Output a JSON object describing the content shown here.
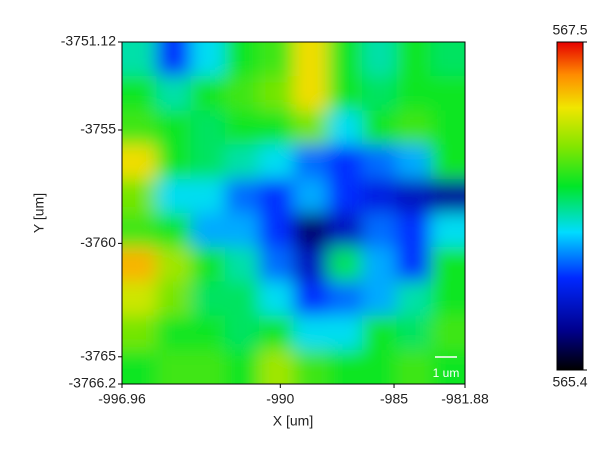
{
  "chart_data": {
    "type": "heatmap",
    "xlabel": "X [um]",
    "ylabel": "Y [um]",
    "xlim": [
      -996.96,
      -981.88
    ],
    "xticks": [
      -996.96,
      -990,
      -985,
      -981.88
    ],
    "ylim": [
      -3766.2,
      -3751.12
    ],
    "yticks": [
      -3751.12,
      -3755,
      -3760,
      -3765,
      -3766.2
    ],
    "z": [
      [
        566.4,
        566.0,
        566.3,
        566.6,
        566.7,
        567.1,
        566.6,
        566.4,
        566.6,
        566.5
      ],
      [
        566.6,
        566.4,
        566.6,
        566.7,
        566.8,
        567.1,
        566.6,
        566.5,
        566.6,
        566.6
      ],
      [
        566.7,
        566.6,
        566.5,
        566.6,
        566.6,
        566.8,
        566.3,
        566.6,
        566.7,
        566.6
      ],
      [
        567.1,
        566.6,
        566.5,
        566.4,
        566.3,
        566.1,
        566.0,
        566.1,
        566.2,
        566.6
      ],
      [
        566.8,
        566.3,
        566.3,
        566.1,
        566.0,
        566.2,
        566.0,
        565.9,
        565.8,
        565.7
      ],
      [
        566.7,
        566.6,
        566.2,
        566.2,
        566.0,
        565.6,
        565.8,
        566.1,
        566.0,
        566.3
      ],
      [
        567.2,
        566.9,
        566.6,
        566.4,
        566.1,
        565.8,
        566.5,
        566.2,
        566.0,
        566.6
      ],
      [
        567.0,
        566.8,
        566.5,
        566.5,
        566.3,
        566.0,
        566.1,
        566.2,
        566.4,
        566.6
      ],
      [
        566.8,
        566.6,
        566.6,
        566.5,
        566.6,
        566.3,
        566.3,
        566.6,
        566.5,
        566.7
      ],
      [
        566.6,
        566.7,
        566.7,
        566.6,
        566.9,
        566.7,
        566.6,
        566.6,
        566.7,
        566.6
      ]
    ],
    "colorbar": {
      "lim": [
        565.4,
        567.5
      ],
      "ticks": [
        565.4,
        567.5
      ]
    },
    "scale_bar": "1 um"
  }
}
